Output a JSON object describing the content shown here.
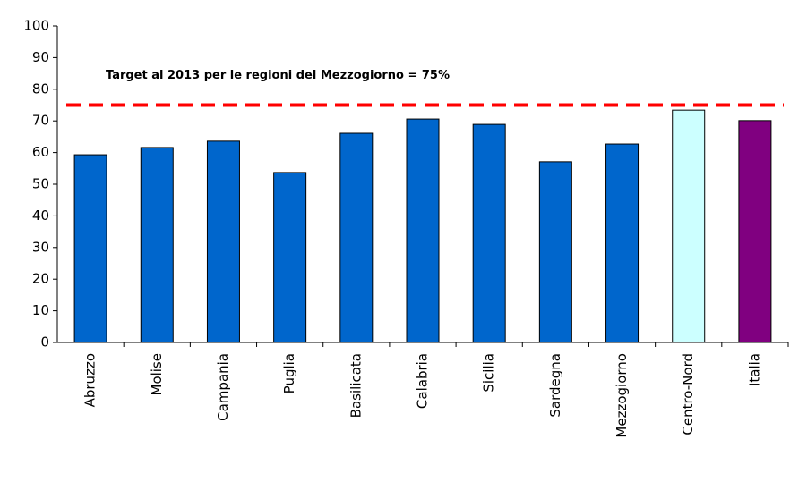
{
  "chart_data": {
    "type": "bar",
    "annotation": "Target al 2013 per le regioni del Mezzogiorno = 75%",
    "categories": [
      "Abruzzo",
      "Molise",
      "Campania",
      "Puglia",
      "Basilicata",
      "Calabria",
      "Sicilia",
      "Sardegna",
      "Mezzogiorno",
      "Centro-Nord",
      "Italia"
    ],
    "values": [
      59.3,
      61.6,
      63.6,
      53.7,
      66.1,
      70.6,
      68.9,
      57.1,
      62.7,
      73.4,
      70.1
    ],
    "colors": [
      "#0066cc",
      "#0066cc",
      "#0066cc",
      "#0066cc",
      "#0066cc",
      "#0066cc",
      "#0066cc",
      "#0066cc",
      "#0066cc",
      "#ccffff",
      "#800080"
    ],
    "target": 75,
    "target_color": "#ff0000",
    "ylim": [
      0,
      100
    ],
    "yticks": [
      0,
      10,
      20,
      30,
      40,
      50,
      60,
      70,
      80,
      90,
      100
    ],
    "grid": false
  }
}
